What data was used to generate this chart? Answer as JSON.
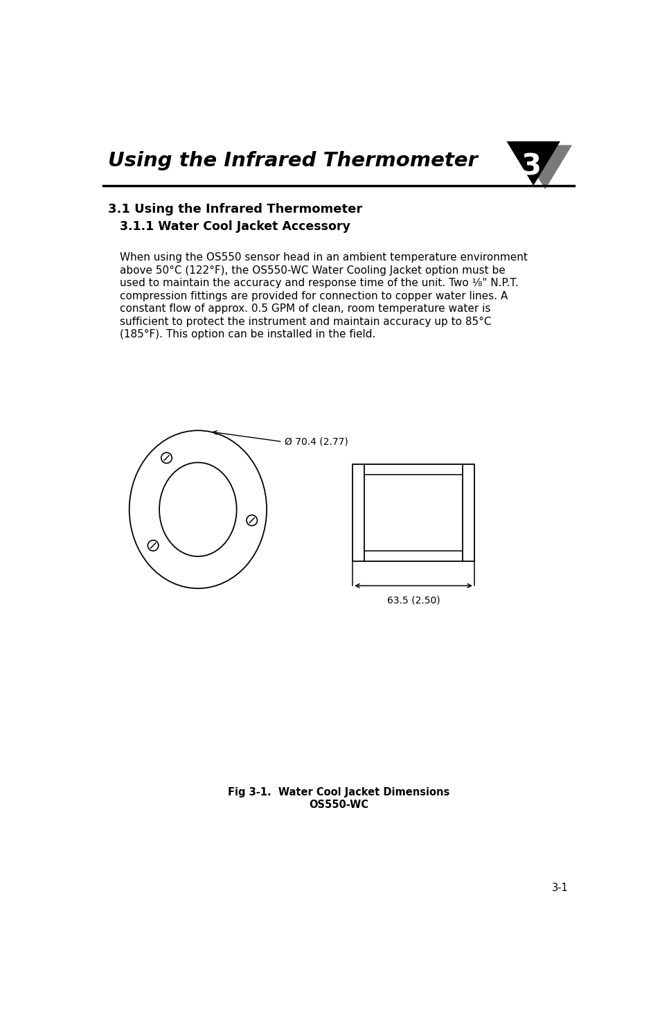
{
  "page_title": "Using the Infrared Thermometer",
  "chapter_num": "3",
  "section_title": "3.1 Using the Infrared Thermometer",
  "subsection_title": "3.1.1 Water Cool Jacket Accessory",
  "body_lines": [
    "When using the OS550 sensor head in an ambient temperature environment",
    "above 50°C (122°F), the OS550-WC Water Cooling Jacket option must be",
    "used to maintain the accuracy and response time of the unit. Two ¹⁄₈\" N.P.T.",
    "compression fittings are provided for connection to copper water lines. A",
    "constant flow of approx. 0.5 GPM of clean, room temperature water is",
    "sufficient to protect the instrument and maintain accuracy up to 85°C",
    "(185°F). This option can be installed in the field."
  ],
  "dim_label1": "Ø 70.4 (2.77)",
  "dim_label2": "63.5 (2.50)",
  "fig_caption_line1": "Fig 3-1.  Water Cool Jacket Dimensions",
  "fig_caption_line2": "OS550-WC",
  "page_num": "3-1",
  "bg_color": "#ffffff",
  "text_color": "#000000"
}
